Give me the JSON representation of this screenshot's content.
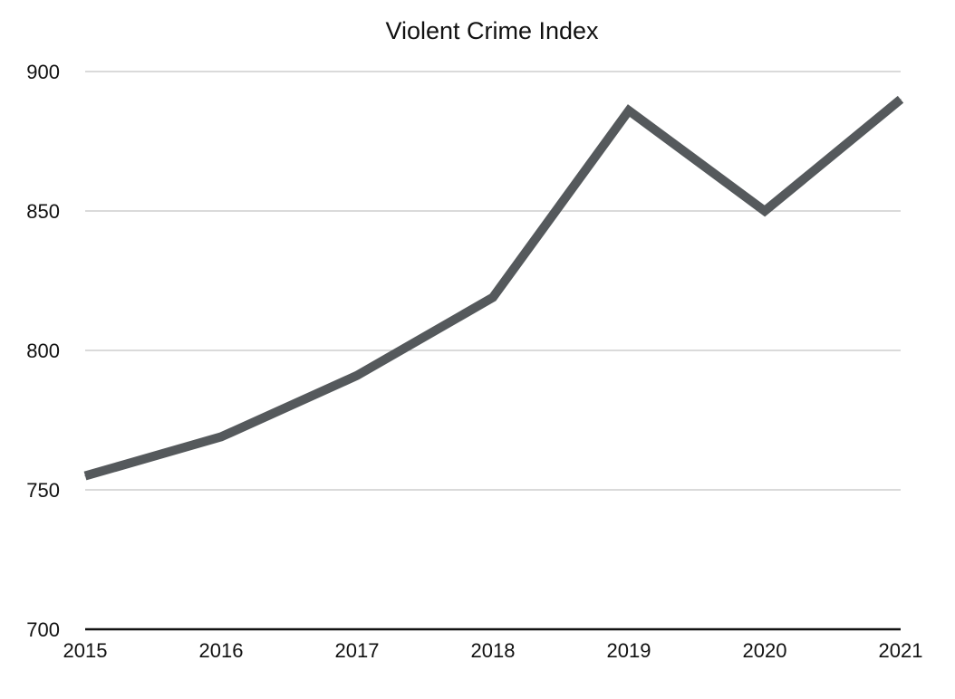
{
  "chart_data": {
    "type": "line",
    "title": "Violent Crime Index",
    "xlabel": "",
    "ylabel": "",
    "x": [
      "2015",
      "2016",
      "2017",
      "2018",
      "2019",
      "2020",
      "2021"
    ],
    "series": [
      {
        "values": [
          755,
          769,
          791,
          819,
          886,
          850,
          890
        ],
        "color": "#55595c"
      }
    ],
    "ylim": [
      700,
      900
    ],
    "yticks": [
      "700",
      "750",
      "800",
      "850",
      "900"
    ],
    "grid": true,
    "legend": "none",
    "gridline_color": "#c4c4c4",
    "axis_color": "#111111"
  }
}
